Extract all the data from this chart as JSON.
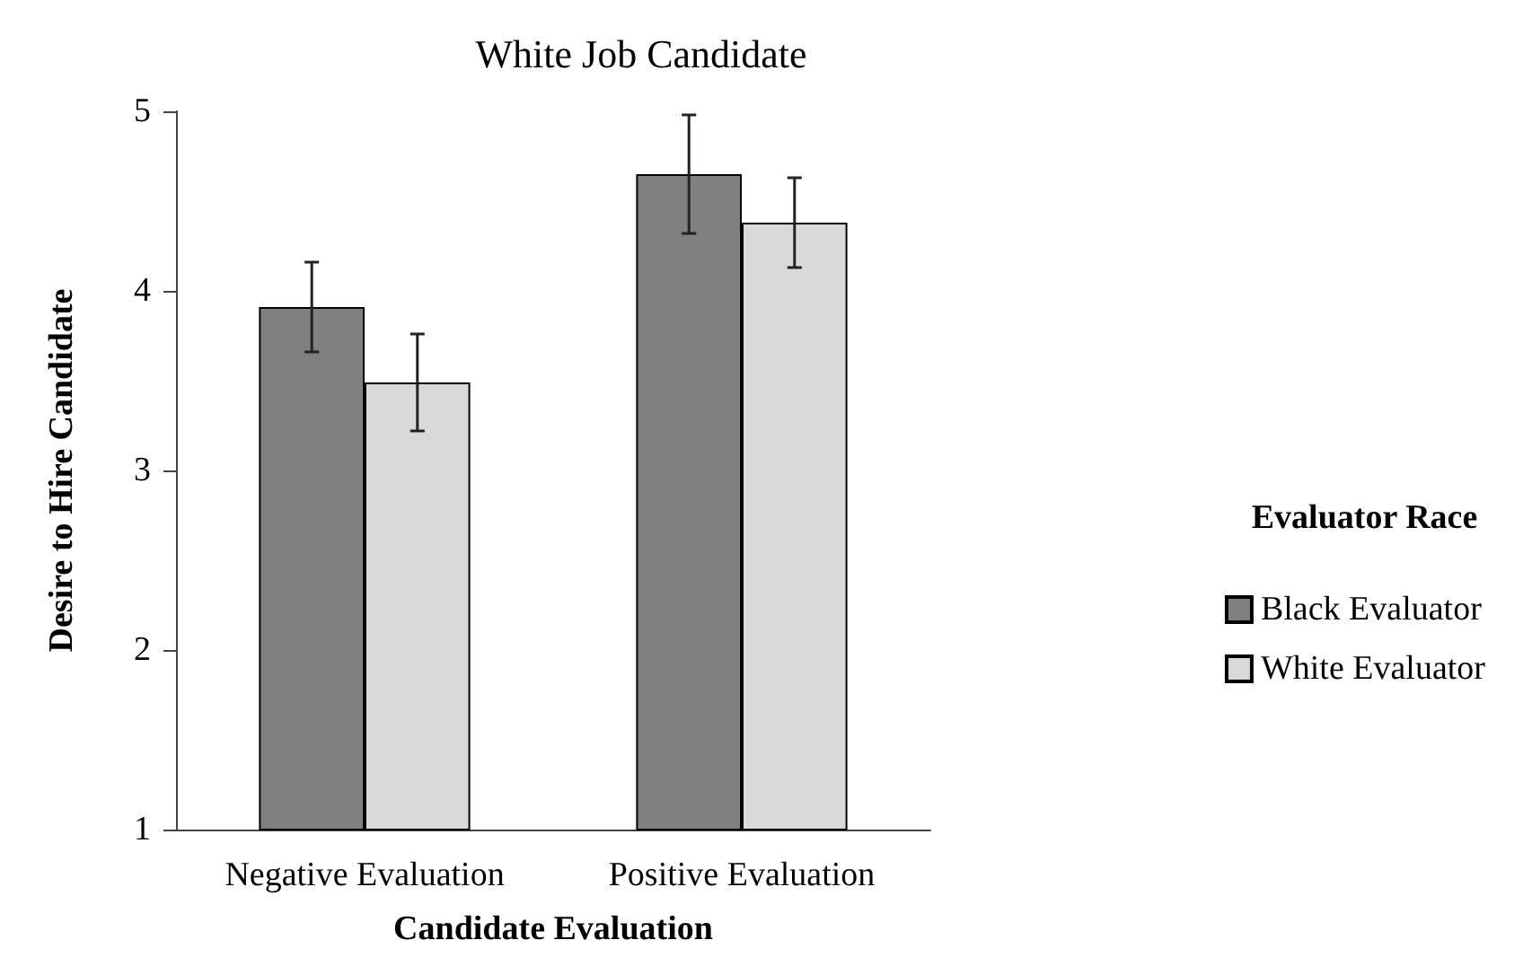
{
  "chart_data": {
    "type": "bar",
    "title": "White Job Candidate",
    "xlabel": "Candidate Evaluation",
    "ylabel": "Desire to Hire Candidate",
    "legend_title": "Evaluator Race",
    "categories": [
      "Negative Evaluation",
      "Positive Evaluation"
    ],
    "series": [
      {
        "name": "Black Evaluator",
        "color": "#808080",
        "values": [
          3.91,
          4.65
        ],
        "errors": [
          0.25,
          0.33
        ]
      },
      {
        "name": "White Evaluator",
        "color": "#d9d9d9",
        "values": [
          3.49,
          4.38
        ],
        "errors": [
          0.27,
          0.25
        ]
      }
    ],
    "ylim": [
      1,
      5
    ],
    "yticks": [
      1,
      2,
      3,
      4,
      5
    ],
    "grid": false,
    "legend": "right"
  }
}
